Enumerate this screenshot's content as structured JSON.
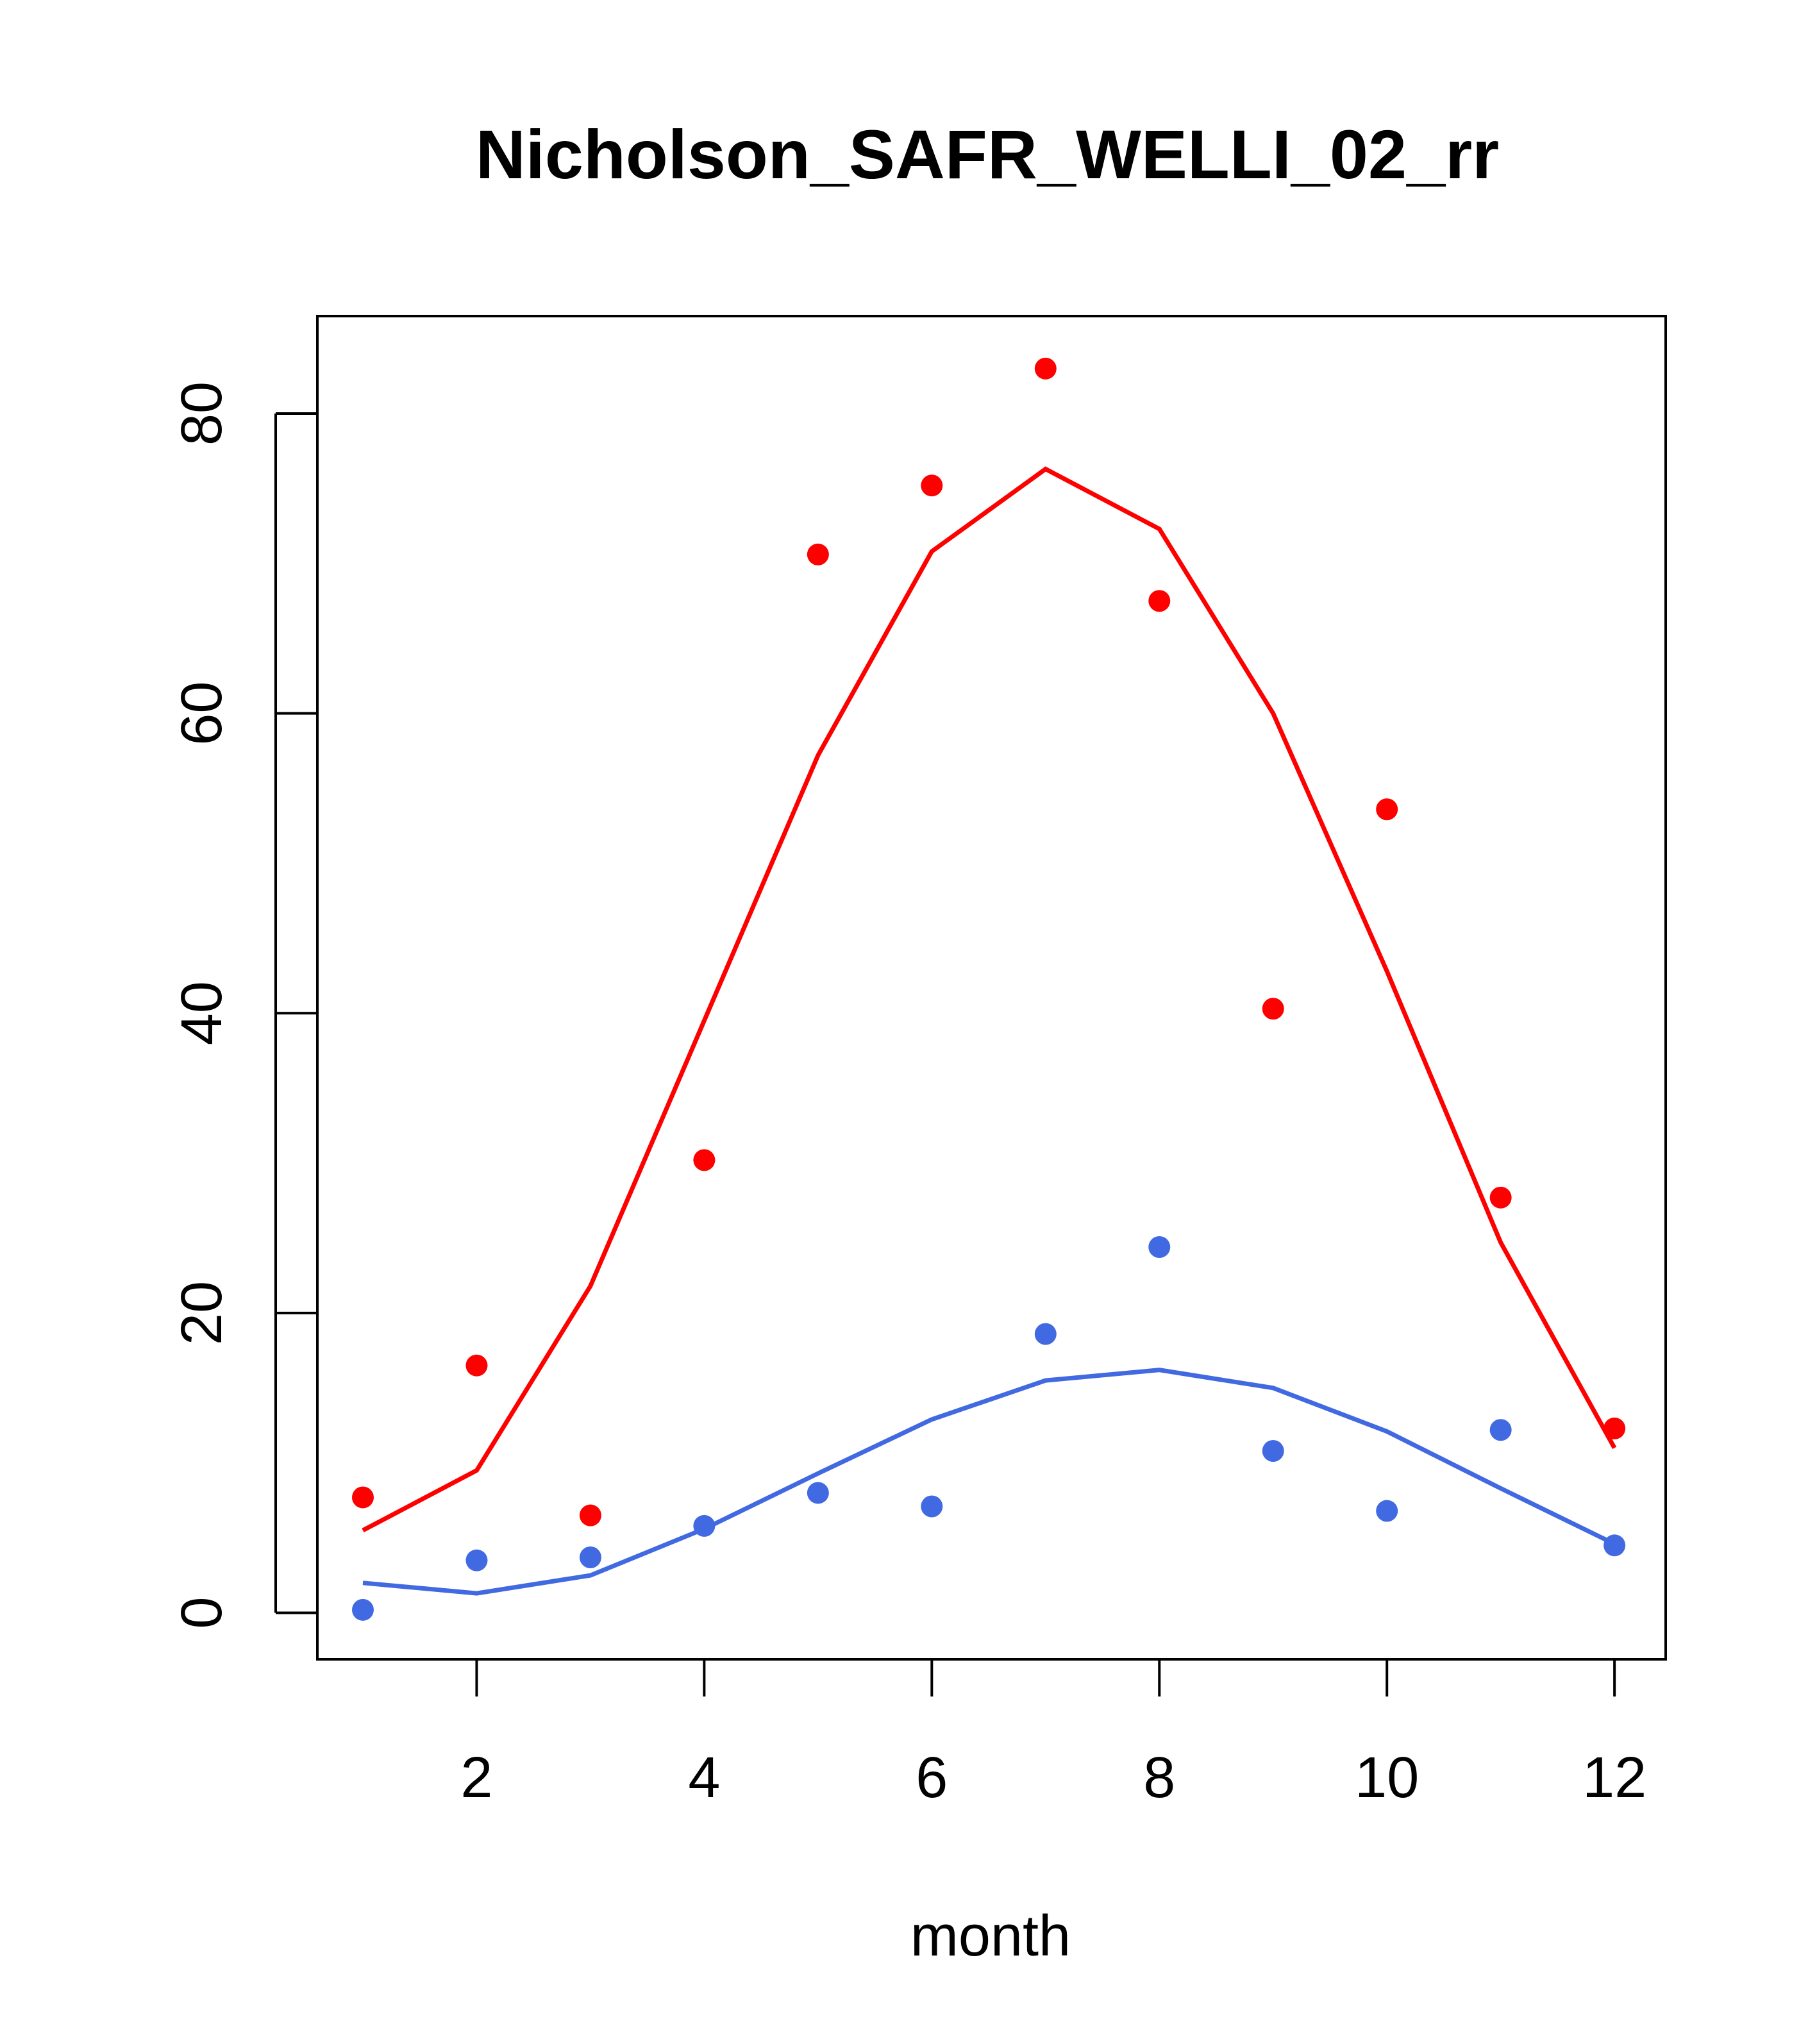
{
  "chart_data": {
    "type": "scatter",
    "title": "Nicholson_SAFR_WELLI_02_rr",
    "xlabel": "month",
    "ylabel": "",
    "xlim": [
      0.6,
      12.45
    ],
    "ylim": [
      -3.1,
      86.5
    ],
    "x_ticks": [
      2,
      4,
      6,
      8,
      10,
      12
    ],
    "x_tick_labels": [
      "2",
      "4",
      "6",
      "8",
      "10",
      "12"
    ],
    "y_ticks": [
      0,
      20,
      40,
      60,
      80
    ],
    "y_tick_labels": [
      "0",
      "20",
      "40",
      "60",
      "80"
    ],
    "grid": false,
    "legend": "none",
    "series": [
      {
        "name": "red-points",
        "kind": "points",
        "color": "#ff0000",
        "x": [
          1,
          2,
          3,
          4,
          5,
          6,
          7,
          8,
          9,
          10,
          11,
          12
        ],
        "values": [
          7.7,
          16.5,
          6.5,
          30.2,
          70.6,
          75.2,
          83.0,
          67.5,
          40.3,
          53.6,
          27.7,
          12.3
        ]
      },
      {
        "name": "red-curve",
        "kind": "line",
        "color": "#ff0000",
        "x": [
          1,
          2,
          3,
          4,
          5,
          6,
          7,
          8,
          9,
          10,
          11,
          12
        ],
        "values": [
          5.5,
          9.5,
          21.8,
          39.5,
          57.2,
          70.8,
          76.3,
          72.3,
          60.0,
          42.8,
          24.7,
          11.0
        ]
      },
      {
        "name": "blue-points",
        "kind": "points",
        "color": "#4169e1",
        "x": [
          1,
          2,
          3,
          4,
          5,
          6,
          7,
          8,
          9,
          10,
          11,
          12
        ],
        "values": [
          0.2,
          3.5,
          3.7,
          5.8,
          8.0,
          7.1,
          18.6,
          24.4,
          10.8,
          6.8,
          12.2,
          4.5
        ]
      },
      {
        "name": "blue-curve",
        "kind": "line",
        "color": "#4169e1",
        "x": [
          1,
          2,
          3,
          4,
          5,
          6,
          7,
          8,
          9,
          10,
          11,
          12
        ],
        "values": [
          2.0,
          1.3,
          2.5,
          5.6,
          9.3,
          12.9,
          15.5,
          16.2,
          15.0,
          12.1,
          8.3,
          4.6
        ]
      }
    ]
  }
}
